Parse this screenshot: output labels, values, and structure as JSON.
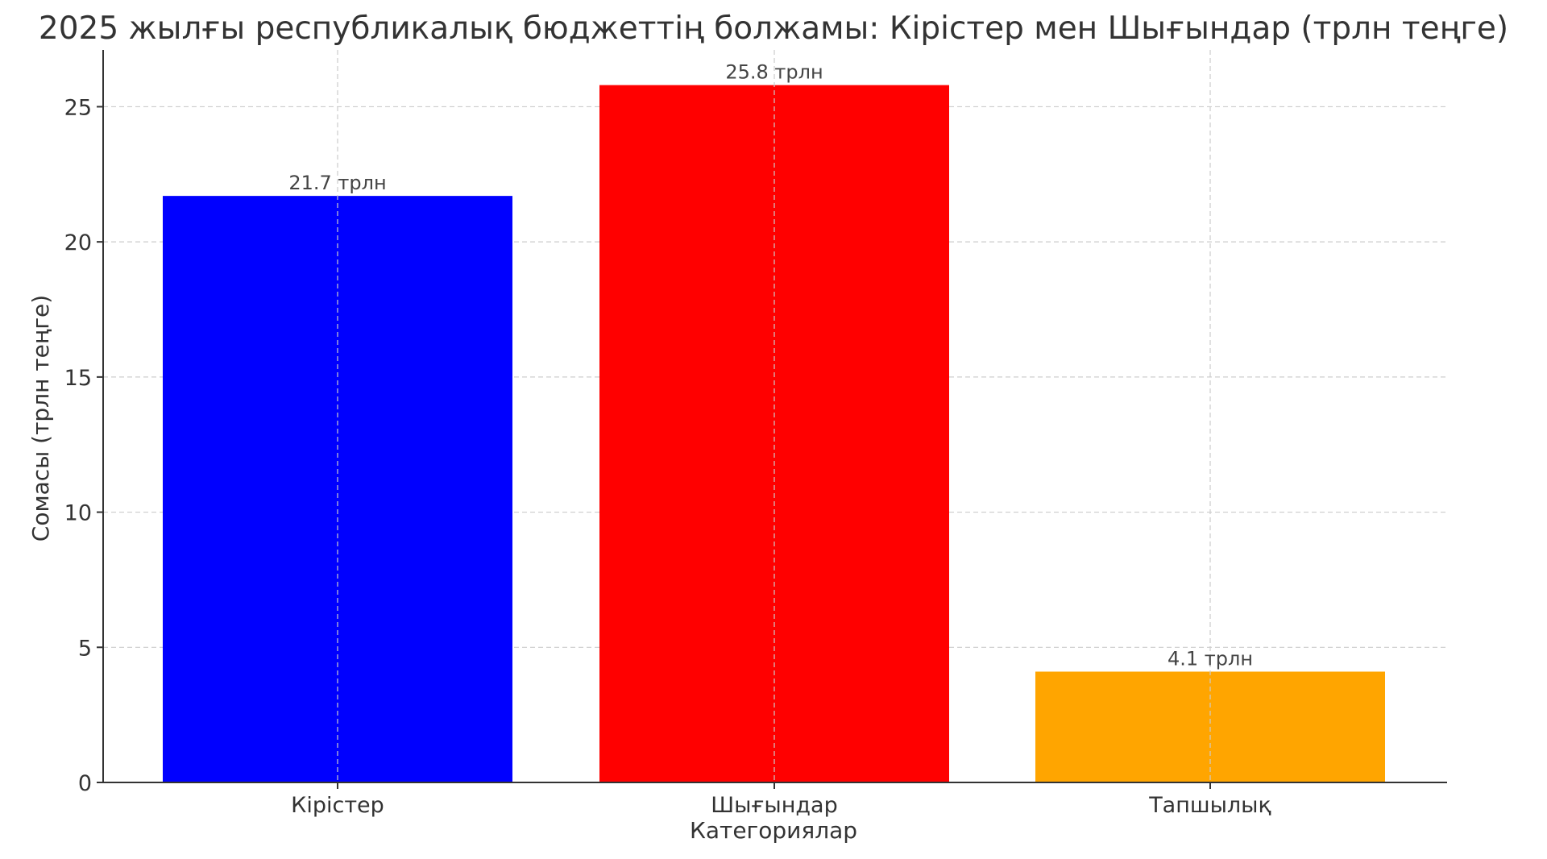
{
  "chart_data": {
    "type": "bar",
    "title": "2025 жылғы республикалық бюджеттің болжамы: Кірістер мен Шығындар (трлн теңге)",
    "xlabel": "Категориялар",
    "ylabel": "Сомасы (трлн теңге)",
    "categories": [
      "Кірістер",
      "Шығындар",
      "Тапшылық"
    ],
    "values": [
      21.7,
      25.8,
      4.1
    ],
    "data_labels": [
      "21.7 трлн",
      "25.8 трлн",
      "4.1 трлн"
    ],
    "colors": [
      "#0000ff",
      "#ff0000",
      "#ffa500"
    ],
    "ylim": [
      0,
      27.1
    ],
    "yticks": [
      0,
      5,
      10,
      15,
      20,
      25
    ],
    "grid": true,
    "legend": "none"
  }
}
